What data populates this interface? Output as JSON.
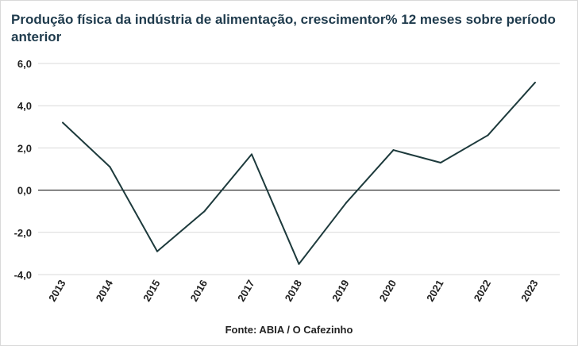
{
  "chart_data": {
    "type": "line",
    "title": "Produção física da indústria de alimentação, crescimentor% 12 meses sobre período anterior",
    "x": [
      "2013",
      "2014",
      "2015",
      "2016",
      "2017",
      "2018",
      "2019",
      "2020",
      "2021",
      "2022",
      "2023"
    ],
    "values": [
      3.2,
      1.1,
      -2.9,
      -1.0,
      1.7,
      -3.5,
      -0.6,
      1.9,
      1.3,
      2.6,
      5.1
    ],
    "ylim": [
      -4,
      6
    ],
    "yticks": [
      -4,
      -2,
      0,
      2,
      4,
      6
    ],
    "ytick_labels": [
      "-4,0",
      "-2,0",
      "0,0",
      "2,0",
      "4,0",
      "6,0"
    ],
    "grid": true,
    "legend": "none",
    "line_color": "#1d3a3c",
    "source": "Fonte: ABIA / O Cafezinho"
  }
}
